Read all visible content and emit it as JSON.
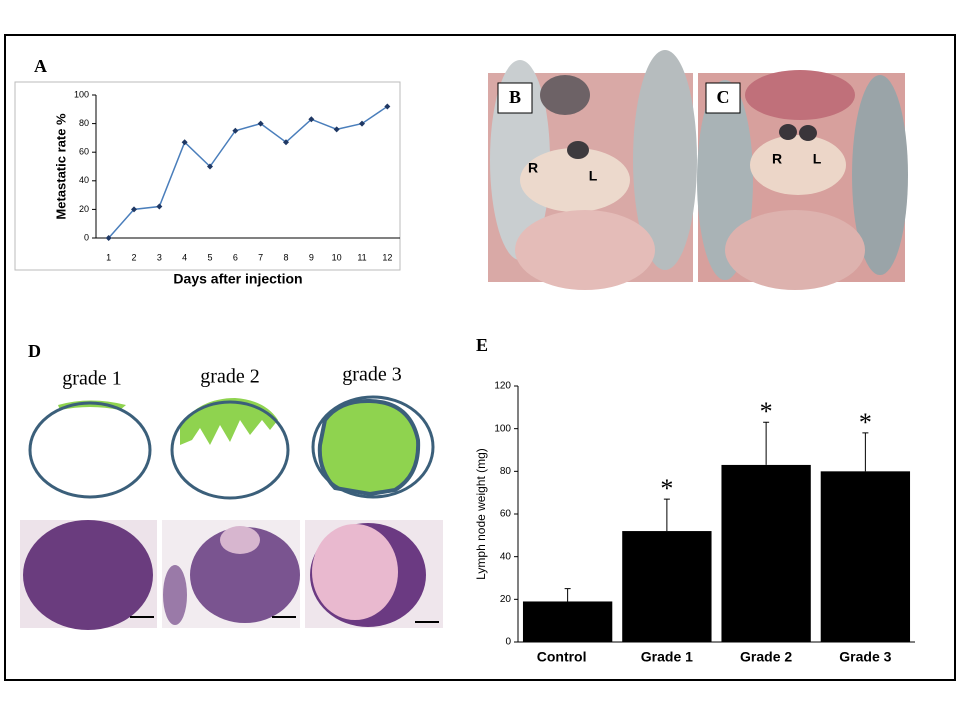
{
  "panel_labels": {
    "a": "A",
    "b": "B",
    "c": "C",
    "d": "D",
    "e": "E"
  },
  "photo_b_labels": [
    "R",
    "L"
  ],
  "photo_c_labels": [
    "R",
    "L"
  ],
  "grades": [
    "grade 1",
    "grade 2",
    "grade 3"
  ],
  "chart_data": [
    {
      "type": "line",
      "x_label": "Days after injection",
      "y_label": "Metastatic rate %",
      "categories": [
        "1",
        "2",
        "3",
        "4",
        "5",
        "6",
        "7",
        "8",
        "9",
        "10",
        "11",
        "12"
      ],
      "values": [
        0,
        20,
        22,
        67,
        50,
        75,
        80,
        67,
        83,
        76,
        80,
        92
      ],
      "color": "#4a7ebb",
      "marker_color": "#1f3864",
      "ylim": [
        0,
        100
      ],
      "yticks": [
        0,
        20,
        40,
        60,
        80,
        100
      ]
    },
    {
      "type": "bar",
      "y_label": "Lymph node weight (mg)",
      "categories": [
        "Control",
        "Grade 1",
        "Grade 2",
        "Grade 3"
      ],
      "values": [
        19,
        52,
        83,
        80
      ],
      "errors": [
        6,
        15,
        20,
        18
      ],
      "significance": [
        null,
        "*",
        "*",
        "*"
      ],
      "color": "#000000",
      "ylim": [
        0,
        120
      ],
      "yticks": [
        0,
        20,
        40,
        60,
        80,
        100,
        120
      ]
    }
  ]
}
